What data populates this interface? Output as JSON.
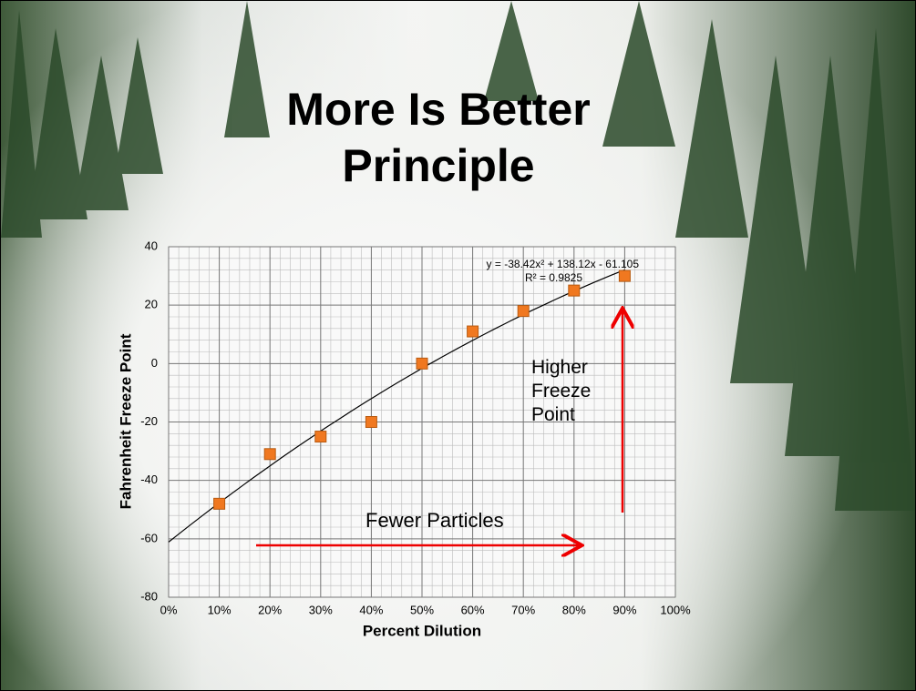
{
  "chart_data": {
    "type": "scatter",
    "title": "More Is Better Principle",
    "x_label": "Percent Dilution",
    "y_label": "Fahrenheit Freeze Point",
    "x": [
      0.1,
      0.2,
      0.3,
      0.4,
      0.5,
      0.6,
      0.7,
      0.8,
      0.9
    ],
    "values": [
      -48,
      -31,
      -25,
      -20,
      0,
      11,
      18,
      25,
      30
    ],
    "color": "#f07820",
    "xlim": [
      0,
      1
    ],
    "xticks": [
      {
        "value": 0,
        "label": "0%"
      },
      {
        "value": 0.1,
        "label": "10%"
      },
      {
        "value": 0.2,
        "label": "20%"
      },
      {
        "value": 0.3,
        "label": "30%"
      },
      {
        "value": 0.4,
        "label": "40%"
      },
      {
        "value": 0.5,
        "label": "50%"
      },
      {
        "value": 0.6,
        "label": "60%"
      },
      {
        "value": 0.7,
        "label": "70%"
      },
      {
        "value": 0.8,
        "label": "80%"
      },
      {
        "value": 0.9,
        "label": "90%"
      },
      {
        "value": 1,
        "label": "100%"
      }
    ],
    "ylim": [
      -80,
      40
    ],
    "yticks": [
      -80,
      -60,
      -40,
      -20,
      0,
      20,
      40
    ],
    "grid": true,
    "trendline": {
      "coefficients": [
        -38.42,
        138.12,
        -61.105
      ],
      "equation": "y = -38.42x² + 138.12x - 61.105",
      "r_squared": "R² = 0.9825"
    },
    "annotations": [
      "Higher Freeze Point",
      "Fewer Particles"
    ]
  }
}
